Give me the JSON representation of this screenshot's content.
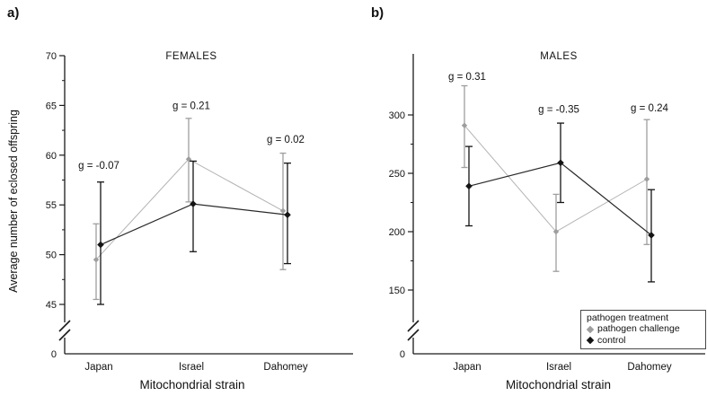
{
  "figure": {
    "background": "#ffffff",
    "axis_color": "#1a1a1a"
  },
  "panels": [
    {
      "panel_label": "a)"
    },
    {
      "panel_label": "b)"
    }
  ],
  "legend": {
    "title": "pathogen treatment",
    "position": "bottom-right-of-panel-b",
    "entries": [
      {
        "label": "pathogen challenge",
        "marker": "diamond",
        "color": "#9e9e9e"
      },
      {
        "label": "control",
        "marker": "diamond",
        "color": "#141414"
      }
    ]
  },
  "chart_data": [
    {
      "type": "line",
      "title": "FEMALES",
      "xlabel": "Mitochondrial strain",
      "ylabel": "Average number of eclosed offspring",
      "categories": [
        "Japan",
        "Israel",
        "Dahomey"
      ],
      "yticks": [
        45,
        50,
        55,
        60,
        65,
        70
      ],
      "ylim": [
        43,
        70
      ],
      "axis_break": true,
      "zero_tick_label": "0",
      "grid": false,
      "series": [
        {
          "name": "pathogen challenge",
          "color": "#9e9e9e",
          "line_color": "#b3b3b3",
          "values": [
            49.5,
            59.6,
            54.4
          ],
          "err_low": [
            45.5,
            55.3,
            48.5
          ],
          "err_high": [
            53.1,
            63.7,
            60.2
          ]
        },
        {
          "name": "control",
          "color": "#141414",
          "line_color": "#2a2a2a",
          "values": [
            51.0,
            55.1,
            54.0
          ],
          "err_low": [
            45.0,
            50.3,
            49.1
          ],
          "err_high": [
            57.3,
            59.4,
            59.2
          ]
        }
      ],
      "annotations": [
        {
          "text": "g = -0.07",
          "y": 59.0
        },
        {
          "text": "g = 0.21",
          "y": 65.0
        },
        {
          "text": "g = 0.02",
          "y": 61.6
        }
      ]
    },
    {
      "type": "line",
      "title": "MALES",
      "xlabel": "Mitochondrial strain",
      "ylabel": "",
      "categories": [
        "Japan",
        "Israel",
        "Dahomey"
      ],
      "yticks": [
        150,
        200,
        250,
        300
      ],
      "ylim": [
        143,
        352
      ],
      "axis_break": true,
      "zero_tick_label": "0",
      "grid": false,
      "series": [
        {
          "name": "pathogen challenge",
          "color": "#9e9e9e",
          "line_color": "#b3b3b3",
          "values": [
            291,
            200,
            245
          ],
          "err_low": [
            255,
            166,
            189
          ],
          "err_high": [
            325,
            232,
            296
          ]
        },
        {
          "name": "control",
          "color": "#141414",
          "line_color": "#2a2a2a",
          "values": [
            239,
            259,
            197
          ],
          "err_low": [
            205,
            225,
            157
          ],
          "err_high": [
            273,
            293,
            236
          ]
        }
      ],
      "annotations": [
        {
          "text": "g = 0.31",
          "y": 333
        },
        {
          "text": "g = -0.35",
          "y": 305
        },
        {
          "text": "g = 0.24",
          "y": 306
        }
      ]
    }
  ]
}
